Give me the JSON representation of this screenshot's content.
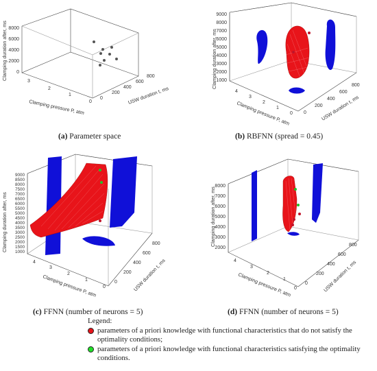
{
  "panels": [
    {
      "id": "a",
      "caption_letter": "(a)",
      "caption_text": "Parameter space",
      "z_label": "Clamping duration after, ms",
      "z_ticks": [
        "0",
        "2000",
        "4000",
        "6000",
        "8000"
      ],
      "p_label": "Clamping pressure P, atm",
      "p_ticks": [
        "3",
        "2",
        "1",
        "0"
      ],
      "t_label": "USW duration t, ms",
      "t_ticks": [
        "0",
        "200",
        "400",
        "600",
        "800"
      ]
    },
    {
      "id": "b",
      "caption_letter": "(b)",
      "caption_text": "RBFNN (spread = 0.45)",
      "z_label": "Clamping duration after, ms",
      "z_ticks": [
        "1000",
        "2000",
        "3000",
        "4000",
        "5000",
        "6000",
        "7000",
        "8000",
        "9000"
      ],
      "p_label": "Clamping pressure P, atm",
      "p_ticks": [
        "4",
        "3",
        "2",
        "1",
        "0"
      ],
      "t_label": "USW duration t, ms",
      "t_ticks": [
        "0",
        "200",
        "400",
        "600",
        "800"
      ]
    },
    {
      "id": "c",
      "caption_letter": "(c)",
      "caption_text": "FFNN (number of neurons = 5)",
      "z_label": "Clamping duration after, ms",
      "z_ticks": [
        "1000",
        "1500",
        "2000",
        "2500",
        "3000",
        "3500",
        "4000",
        "4500",
        "5000",
        "5500",
        "6000",
        "6500",
        "7000",
        "7500",
        "8000",
        "8500",
        "9000"
      ],
      "p_label": "Clamping pressure P, atm",
      "p_ticks": [
        "4",
        "3",
        "2",
        "1",
        "0"
      ],
      "t_label": "USW duration t, ms",
      "t_ticks": [
        "0",
        "200",
        "400",
        "600",
        "800"
      ]
    },
    {
      "id": "d",
      "caption_letter": "(d)",
      "caption_text": "FFNN (number of neurons = 5)",
      "z_label": "Clamping duration after, ms",
      "z_ticks": [
        "2000",
        "3000",
        "4000",
        "5000",
        "6000",
        "7000",
        "8000"
      ],
      "p_label": "Clamping pressure P, atm",
      "p_ticks": [
        "4",
        "3",
        "2",
        "1",
        "0"
      ],
      "t_label": "USW duration t, ms",
      "t_ticks": [
        "0",
        "200",
        "400",
        "600",
        "800"
      ]
    }
  ],
  "legend": {
    "title": "Legend:",
    "items": [
      {
        "color": "#e8141a",
        "text": "parameters of a priori knowledge with functional characteristics that do not satisfy the optimality conditions;"
      },
      {
        "color": "#22e02a",
        "text": "parameters of a priori knowledge with functional characteristics satisfying the optimality conditions."
      }
    ]
  },
  "colors": {
    "surface_blue": "#1010d8",
    "surface_red": "#e8141a",
    "point_grey": "#555555",
    "point_red": "#c0142a",
    "point_green": "#22c02a"
  }
}
